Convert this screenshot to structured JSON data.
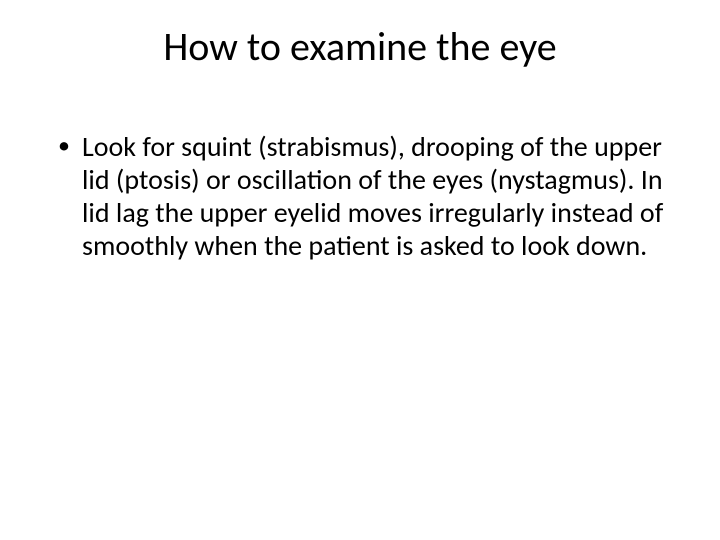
{
  "slide": {
    "background_color": "#ffffff",
    "text_color": "#000000",
    "font_family": "Calibri",
    "title": {
      "text": "How to examine the eye",
      "fontsize": 40,
      "align": "center",
      "weight": 400
    },
    "body": {
      "fontsize": 28,
      "line_height": 1.18,
      "bullets": [
        {
          "text": "Look for squint (strabismus), drooping of the upper lid (ptosis) or oscillation of the eyes (nystagmus). In lid lag the upper eyelid moves irregularly instead of smoothly when the patient is asked to look down."
        }
      ]
    }
  }
}
